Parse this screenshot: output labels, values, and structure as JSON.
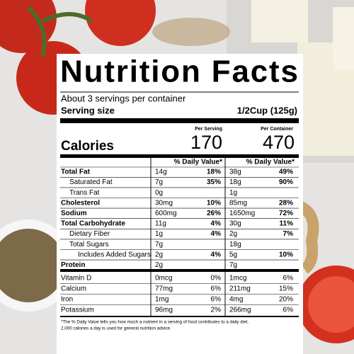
{
  "title": "Nutrition Facts",
  "servings": "About 3 servings per container",
  "serving_size": {
    "label": "Serving size",
    "value": "1/2Cup (125g)"
  },
  "columns": [
    "Per Serving",
    "Per Container"
  ],
  "calories": {
    "label": "Calories",
    "serving": "170",
    "container": "470"
  },
  "daily_value_header": "% Daily Value*",
  "nutrients": [
    {
      "name": "Total Fat",
      "amount": "14g",
      "dv": "18%",
      "container_amount": "38g",
      "container_dv": "49%"
    },
    {
      "name": "Saturated Fat",
      "amount": "7g",
      "dv": "35%",
      "container_amount": "18g",
      "container_dv": "90%"
    },
    {
      "name": "Trans Fat",
      "amount": "0g",
      "container_amount": "1g"
    },
    {
      "name": "Cholesterol",
      "amount": "30mg",
      "dv": "10%",
      "container_amount": "85mg",
      "container_dv": "28%"
    },
    {
      "name": "Sodium",
      "amount": "600mg",
      "dv": "26%",
      "container_amount": "1650mg",
      "container_dv": "72%"
    },
    {
      "name": "Total Carbohydrate",
      "amount": "11g",
      "dv": "4%",
      "container_amount": "30g",
      "container_dv": "11%"
    },
    {
      "name": "Dietary Fiber",
      "amount": "1g",
      "dv": "4%",
      "container_amount": "2g",
      "container_dv": "7%"
    },
    {
      "name": "Total Sugars",
      "amount": "7g",
      "container_amount": "18g"
    },
    {
      "name": "Includes Added Sugars",
      "amount": "2g",
      "dv": "4%",
      "container_amount": "5g",
      "container_dv": "10%"
    },
    {
      "name": "Protein",
      "amount": "2g",
      "container_amount": "7g"
    }
  ],
  "vitamins": [
    {
      "name": "Vitamin D",
      "amount": "0mcg",
      "dv": "0%",
      "container_amount": "1mcg",
      "container_dv": "6%"
    },
    {
      "name": "Calcium",
      "amount": "77mg",
      "dv": "6%",
      "container_amount": "211mg",
      "container_dv": "15%"
    },
    {
      "name": "Iron",
      "amount": "1mg",
      "dv": "6%",
      "container_amount": "4mg",
      "container_dv": "20%"
    },
    {
      "name": "Potassium",
      "amount": "96mg",
      "dv": "2%",
      "container_amount": "266mg",
      "container_dv": "6%"
    }
  ],
  "footnote": [
    "*The % Daily Value tells you how much a nutrient in a serving of food contributes to a daily diet.",
    "2,000 calories a day is used for general nutrition advice."
  ]
}
